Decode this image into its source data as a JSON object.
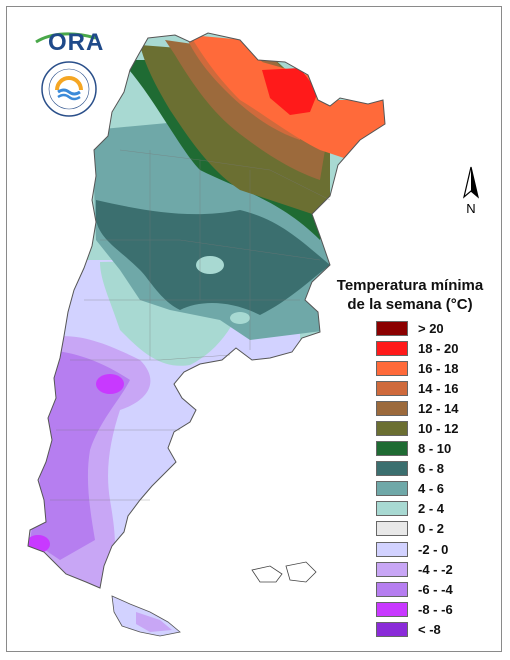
{
  "logos": {
    "ora_text": "ORA",
    "smn_icon": "servicio-meteorologico-nacional-logo"
  },
  "north_arrow": {
    "label": "N"
  },
  "legend": {
    "title_line1": "Temperatura mínima",
    "title_line2": "de la semana (°C)",
    "items": [
      {
        "label": "> 20",
        "color": "#8b0000"
      },
      {
        "label": "18 - 20",
        "color": "#ff1a1a"
      },
      {
        "label": "16 - 18",
        "color": "#ff6a3a"
      },
      {
        "label": "14 - 16",
        "color": "#cf6a3c"
      },
      {
        "label": "12 - 14",
        "color": "#9c6a3c"
      },
      {
        "label": "10 - 12",
        "color": "#6b6f32"
      },
      {
        "label": "8 - 10",
        "color": "#1f6b33"
      },
      {
        "label": "6 - 8",
        "color": "#3b6f6f"
      },
      {
        "label": "4 - 6",
        "color": "#6fa8a8"
      },
      {
        "label": "2 - 4",
        "color": "#a8d9d2"
      },
      {
        "label": "0 - 2",
        "color": "#e8e8e8"
      },
      {
        "label": "-2 - 0",
        "color": "#d2d2ff"
      },
      {
        "label": "-4 - -2",
        "color": "#c8a6f5"
      },
      {
        "label": "-6 - -4",
        "color": "#b67ef0"
      },
      {
        "label": "-8 - -6",
        "color": "#c839ff"
      },
      {
        "label": "< -8",
        "color": "#8a2bd8"
      }
    ]
  }
}
